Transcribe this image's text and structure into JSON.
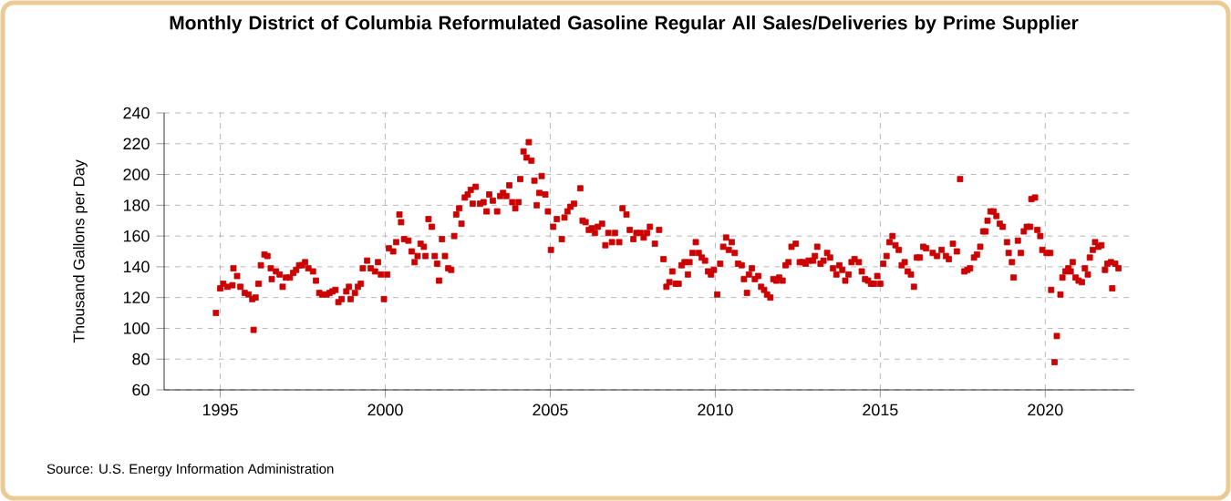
{
  "chart_data": {
    "type": "scatter",
    "title": "Monthly District of Columbia Reformulated Gasoline Regular All Sales/Deliveries by Prime Supplier",
    "ylabel": "Thousand Gallons per Day",
    "annotations": [
      "Source: U.S. Energy Information Administration"
    ],
    "color": "#cc0000",
    "marker": "square",
    "grid": true,
    "xlim": [
      1993.3,
      2022.7
    ],
    "ylim": [
      60,
      240
    ],
    "xticks": [
      1995,
      2000,
      2005,
      2010,
      2015,
      2020
    ],
    "yticks": [
      60,
      80,
      100,
      120,
      140,
      160,
      180,
      200,
      220,
      240
    ],
    "x": [
      1994.87,
      1995.0,
      1995.09,
      1995.22,
      1995.37,
      1995.4,
      1995.51,
      1995.61,
      1995.74,
      1995.86,
      1995.97,
      1996.01,
      1996.07,
      1996.16,
      1996.23,
      1996.34,
      1996.43,
      1996.53,
      1996.56,
      1996.69,
      1996.8,
      1996.89,
      1996.99,
      1997.11,
      1997.21,
      1997.3,
      1997.39,
      1997.48,
      1997.57,
      1997.67,
      1997.81,
      1997.9,
      1998.0,
      1998.09,
      1998.22,
      1998.31,
      1998.4,
      1998.49,
      1998.58,
      1998.68,
      1998.82,
      1998.9,
      1998.95,
      1999.08,
      1999.17,
      1999.26,
      1999.32,
      1999.45,
      1999.56,
      1999.69,
      1999.78,
      1999.87,
      1999.96,
      2000.06,
      2000.11,
      2000.24,
      2000.33,
      2000.43,
      2000.48,
      2000.57,
      2000.7,
      2000.8,
      2000.89,
      2000.98,
      2001.07,
      2001.17,
      2001.22,
      2001.31,
      2001.41,
      2001.5,
      2001.57,
      2001.63,
      2001.72,
      2001.81,
      2001.91,
      2002.0,
      2002.09,
      2002.15,
      2002.24,
      2002.31,
      2002.41,
      2002.5,
      2002.59,
      2002.65,
      2002.74,
      2002.87,
      2002.98,
      2003.07,
      2003.15,
      2003.26,
      2003.39,
      2003.48,
      2003.57,
      2003.67,
      2003.76,
      2003.85,
      2003.94,
      2004.04,
      2004.09,
      2004.19,
      2004.28,
      2004.35,
      2004.43,
      2004.52,
      2004.59,
      2004.67,
      2004.74,
      2004.85,
      2004.93,
      2005.02,
      2005.09,
      2005.2,
      2005.35,
      2005.43,
      2005.52,
      2005.61,
      2005.72,
      2005.91,
      2005.98,
      2006.07,
      2006.17,
      2006.26,
      2006.35,
      2006.44,
      2006.57,
      2006.67,
      2006.76,
      2006.87,
      2006.96,
      2007.09,
      2007.19,
      2007.31,
      2007.41,
      2007.52,
      2007.61,
      2007.74,
      2007.83,
      2007.93,
      2008.02,
      2008.17,
      2008.3,
      2008.43,
      2008.52,
      2008.61,
      2008.7,
      2008.8,
      2008.89,
      2008.98,
      2009.07,
      2009.17,
      2009.22,
      2009.31,
      2009.41,
      2009.5,
      2009.59,
      2009.69,
      2009.78,
      2009.87,
      2009.96,
      2010.06,
      2010.15,
      2010.24,
      2010.33,
      2010.41,
      2010.5,
      2010.59,
      2010.69,
      2010.8,
      2010.87,
      2010.96,
      2011.02,
      2011.11,
      2011.2,
      2011.3,
      2011.39,
      2011.48,
      2011.57,
      2011.67,
      2011.76,
      2011.85,
      2011.94,
      2012.04,
      2012.13,
      2012.22,
      2012.31,
      2012.44,
      2012.56,
      2012.65,
      2012.74,
      2012.83,
      2012.96,
      2013.02,
      2013.09,
      2013.19,
      2013.28,
      2013.39,
      2013.48,
      2013.57,
      2013.67,
      2013.76,
      2013.85,
      2013.94,
      2014.04,
      2014.13,
      2014.22,
      2014.35,
      2014.44,
      2014.54,
      2014.63,
      2014.72,
      2014.81,
      2014.91,
      2015.0,
      2015.09,
      2015.19,
      2015.28,
      2015.37,
      2015.46,
      2015.56,
      2015.65,
      2015.74,
      2015.83,
      2015.93,
      2016.02,
      2016.11,
      2016.2,
      2016.3,
      2016.39,
      2016.59,
      2016.72,
      2016.86,
      2016.99,
      2017.08,
      2017.2,
      2017.32,
      2017.42,
      2017.55,
      2017.64,
      2017.72,
      2017.84,
      2017.93,
      2018.03,
      2018.12,
      2018.19,
      2018.25,
      2018.34,
      2018.43,
      2018.52,
      2018.62,
      2018.71,
      2018.84,
      2018.89,
      2018.99,
      2019.04,
      2019.17,
      2019.26,
      2019.35,
      2019.44,
      2019.54,
      2019.58,
      2019.69,
      2019.76,
      2019.85,
      2019.91,
      2020.04,
      2020.15,
      2020.18,
      2020.28,
      2020.35,
      2020.46,
      2020.52,
      2020.61,
      2020.7,
      2020.77,
      2020.83,
      2020.92,
      2021.01,
      2021.11,
      2021.2,
      2021.29,
      2021.35,
      2021.44,
      2021.51,
      2021.61,
      2021.7,
      2021.81,
      2021.88,
      2021.99,
      2022.03,
      2022.12,
      2022.22
    ],
    "values": [
      110,
      126,
      129,
      127,
      128,
      139,
      134,
      127,
      123,
      122,
      119,
      99,
      120,
      129,
      141,
      148,
      147,
      139,
      132,
      137,
      135,
      127,
      133,
      133,
      136,
      138,
      141,
      141,
      143,
      139,
      137,
      131,
      123,
      122,
      122,
      123,
      124,
      125,
      117,
      119,
      124,
      127,
      119,
      123,
      127,
      129,
      139,
      144,
      139,
      137,
      143,
      135,
      119,
      135,
      152,
      150,
      156,
      174,
      169,
      158,
      157,
      150,
      143,
      147,
      155,
      153,
      147,
      171,
      166,
      147,
      142,
      131,
      158,
      147,
      139,
      138,
      160,
      174,
      178,
      168,
      185,
      187,
      190,
      181,
      192,
      181,
      182,
      176,
      187,
      183,
      176,
      186,
      188,
      186,
      193,
      182,
      178,
      182,
      197,
      215,
      211,
      221,
      209,
      196,
      180,
      188,
      199,
      187,
      176,
      151,
      166,
      171,
      158,
      172,
      176,
      179,
      181,
      191,
      170,
      169,
      164,
      165,
      162,
      166,
      168,
      154,
      162,
      156,
      162,
      156,
      178,
      174,
      164,
      158,
      162,
      162,
      159,
      162,
      166,
      155,
      164,
      145,
      127,
      130,
      137,
      129,
      129,
      141,
      143,
      135,
      143,
      149,
      156,
      149,
      146,
      144,
      137,
      135,
      138,
      122,
      142,
      153,
      159,
      151,
      156,
      149,
      142,
      141,
      132,
      123,
      135,
      139,
      132,
      134,
      127,
      125,
      122,
      120,
      132,
      131,
      133,
      131,
      141,
      143,
      153,
      155,
      143,
      143,
      142,
      144,
      144,
      147,
      153,
      142,
      144,
      149,
      146,
      139,
      135,
      141,
      138,
      131,
      135,
      143,
      145,
      143,
      137,
      132,
      131,
      129,
      129,
      134,
      129,
      142,
      147,
      156,
      160,
      154,
      151,
      141,
      143,
      137,
      135,
      127,
      146,
      146,
      153,
      152,
      149,
      147,
      151,
      147,
      145,
      155,
      150,
      197,
      137,
      138,
      139,
      146,
      148,
      153,
      163,
      163,
      170,
      176,
      176,
      173,
      168,
      166,
      156,
      149,
      143,
      133,
      157,
      149,
      163,
      166,
      166,
      184,
      185,
      164,
      160,
      151,
      149,
      149,
      125,
      78,
      95,
      122,
      133,
      137,
      139,
      137,
      143,
      133,
      131,
      130,
      139,
      135,
      146,
      151,
      156,
      153,
      154,
      138,
      142,
      143,
      126,
      142,
      139
    ]
  }
}
